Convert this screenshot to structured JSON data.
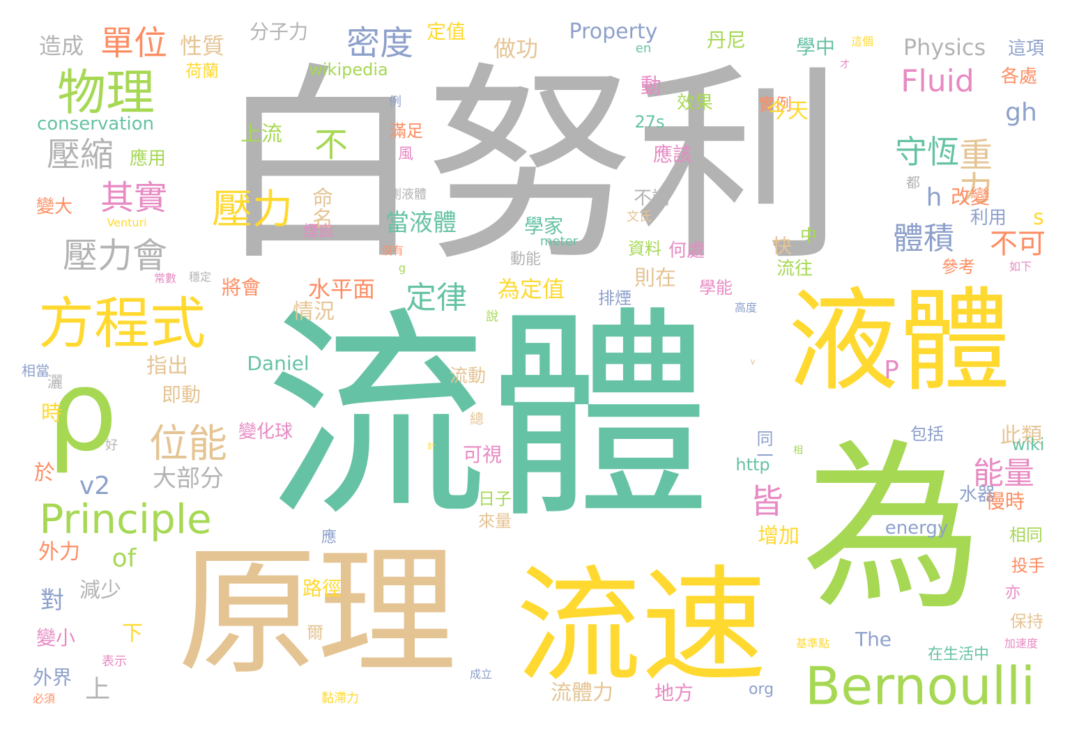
{
  "palette": {
    "gray": "#b3b3b3",
    "teal": "#66c2a5",
    "yellow": "#ffd92f",
    "green": "#a6d854",
    "tan": "#e5c494",
    "orange": "#fc8d62",
    "blue": "#8da0cb",
    "pink": "#e78ac3"
  },
  "words": [
    {
      "text": "白努利",
      "color": "gray"
    },
    {
      "text": "流體",
      "color": "teal"
    },
    {
      "text": "液體",
      "color": "yellow"
    },
    {
      "text": "為",
      "color": "green"
    },
    {
      "text": "原理",
      "color": "tan"
    },
    {
      "text": "流速",
      "color": "yellow"
    },
    {
      "text": "ρ",
      "color": "green"
    },
    {
      "text": "方程式",
      "color": "yellow"
    },
    {
      "text": "Bernoulli",
      "color": "green"
    },
    {
      "text": "Principle",
      "color": "green"
    },
    {
      "text": "物理",
      "color": "green"
    },
    {
      "text": "單位",
      "color": "orange"
    },
    {
      "text": "密度",
      "color": "blue"
    },
    {
      "text": "壓力",
      "color": "yellow"
    },
    {
      "text": "位能",
      "color": "tan"
    },
    {
      "text": "壓縮",
      "color": "gray"
    },
    {
      "text": "其實",
      "color": "pink"
    },
    {
      "text": "壓力會",
      "color": "gray"
    },
    {
      "text": "重力",
      "color": "tan"
    },
    {
      "text": "守恆",
      "color": "teal"
    },
    {
      "text": "Fluid",
      "color": "pink"
    },
    {
      "text": "gh",
      "color": "blue"
    },
    {
      "text": "體積",
      "color": "blue"
    },
    {
      "text": "不可",
      "color": "orange"
    },
    {
      "text": "定律",
      "color": "teal"
    },
    {
      "text": "能量",
      "color": "pink"
    },
    {
      "text": "皆",
      "color": "pink"
    },
    {
      "text": "不",
      "color": "green"
    },
    {
      "text": "v2",
      "color": "blue"
    },
    {
      "text": "of",
      "color": "green"
    },
    {
      "text": "上流",
      "color": "green"
    },
    {
      "text": "造成",
      "color": "gray"
    },
    {
      "text": "性質",
      "color": "tan"
    },
    {
      "text": "分子力",
      "color": "gray"
    },
    {
      "text": "定值",
      "color": "yellow"
    },
    {
      "text": "做功",
      "color": "tan"
    },
    {
      "text": "Property",
      "color": "blue"
    },
    {
      "text": "en",
      "color": "teal"
    },
    {
      "text": "丹尼",
      "color": "green"
    },
    {
      "text": "學中",
      "color": "teal"
    },
    {
      "text": "這個",
      "color": "yellow"
    },
    {
      "text": "Physics",
      "color": "gray"
    },
    {
      "text": "這項",
      "color": "blue"
    },
    {
      "text": "荷蘭",
      "color": "yellow"
    },
    {
      "text": "wikipedia",
      "color": "green"
    },
    {
      "text": "才",
      "color": "pink"
    },
    {
      "text": "各處",
      "color": "orange"
    },
    {
      "text": "conservation",
      "color": "teal"
    },
    {
      "text": "例",
      "color": "blue"
    },
    {
      "text": "動",
      "color": "pink"
    },
    {
      "text": "效果",
      "color": "green"
    },
    {
      "text": "實例",
      "color": "orange"
    },
    {
      "text": "今天",
      "color": "yellow"
    },
    {
      "text": "27s",
      "color": "teal"
    },
    {
      "text": "滿足",
      "color": "orange"
    },
    {
      "text": "應用",
      "color": "green"
    },
    {
      "text": "風",
      "color": "pink"
    },
    {
      "text": "應該",
      "color": "pink"
    },
    {
      "text": "h",
      "color": "blue"
    },
    {
      "text": "改變",
      "color": "orange"
    },
    {
      "text": "都",
      "color": "gray"
    },
    {
      "text": "變大",
      "color": "orange"
    },
    {
      "text": "測液體",
      "color": "gray"
    },
    {
      "text": "不論",
      "color": "gray"
    },
    {
      "text": "Venturi",
      "color": "yellow"
    },
    {
      "text": "命名",
      "color": "tan"
    },
    {
      "text": "煙囪",
      "color": "pink"
    },
    {
      "text": "當液體",
      "color": "teal"
    },
    {
      "text": "文氏",
      "color": "tan"
    },
    {
      "text": "學家",
      "color": "teal"
    },
    {
      "text": "s",
      "color": "yellow"
    },
    {
      "text": "利用",
      "color": "blue"
    },
    {
      "text": "中",
      "color": "green"
    },
    {
      "text": "meter",
      "color": "teal"
    },
    {
      "text": "資料",
      "color": "green"
    },
    {
      "text": "何處",
      "color": "pink"
    },
    {
      "text": "快",
      "color": "tan"
    },
    {
      "text": "沒有",
      "color": "orange"
    },
    {
      "text": "動能",
      "color": "gray"
    },
    {
      "text": "如下",
      "color": "pink"
    },
    {
      "text": "參考",
      "color": "orange"
    },
    {
      "text": "g",
      "color": "green"
    },
    {
      "text": "常數",
      "color": "pink"
    },
    {
      "text": "穩定",
      "color": "gray"
    },
    {
      "text": "將會",
      "color": "orange"
    },
    {
      "text": "水平面",
      "color": "orange"
    },
    {
      "text": "為定值",
      "color": "yellow"
    },
    {
      "text": "則在",
      "color": "tan"
    },
    {
      "text": "流往",
      "color": "green"
    },
    {
      "text": "學能",
      "color": "pink"
    },
    {
      "text": "情況",
      "color": "tan"
    },
    {
      "text": "排煙",
      "color": "blue"
    },
    {
      "text": "說",
      "color": "green"
    },
    {
      "text": "高度",
      "color": "blue"
    },
    {
      "text": "指出",
      "color": "tan"
    },
    {
      "text": "Daniel",
      "color": "teal"
    },
    {
      "text": "P",
      "color": "pink"
    },
    {
      "text": "相當",
      "color": "blue"
    },
    {
      "text": "灑",
      "color": "gray"
    },
    {
      "text": "即動",
      "color": "tan"
    },
    {
      "text": "流動",
      "color": "tan"
    },
    {
      "text": "v",
      "color": "tan"
    },
    {
      "text": "時",
      "color": "yellow"
    },
    {
      "text": "總",
      "color": "tan"
    },
    {
      "text": "變化球",
      "color": "pink"
    },
    {
      "text": "好",
      "color": "gray"
    },
    {
      "text": "計",
      "color": "yellow"
    },
    {
      "text": "同一",
      "color": "blue"
    },
    {
      "text": "此類",
      "color": "tan"
    },
    {
      "text": "相",
      "color": "green"
    },
    {
      "text": "包括",
      "color": "blue"
    },
    {
      "text": "wiki",
      "color": "teal"
    },
    {
      "text": "可視",
      "color": "pink"
    },
    {
      "text": "大部分",
      "color": "gray"
    },
    {
      "text": "http",
      "color": "teal"
    },
    {
      "text": "於",
      "color": "orange"
    },
    {
      "text": "日子",
      "color": "green"
    },
    {
      "text": "水器",
      "color": "blue"
    },
    {
      "text": "慢時",
      "color": "orange"
    },
    {
      "text": "來量",
      "color": "tan"
    },
    {
      "text": "應",
      "color": "blue"
    },
    {
      "text": "energy",
      "color": "blue"
    },
    {
      "text": "增加",
      "color": "yellow"
    },
    {
      "text": "相同",
      "color": "green"
    },
    {
      "text": "外力",
      "color": "orange"
    },
    {
      "text": "減少",
      "color": "gray"
    },
    {
      "text": "投手",
      "color": "orange"
    },
    {
      "text": "對",
      "color": "blue"
    },
    {
      "text": "路徑",
      "color": "yellow"
    },
    {
      "text": "亦",
      "color": "pink"
    },
    {
      "text": "下",
      "color": "yellow"
    },
    {
      "text": "保持",
      "color": "tan"
    },
    {
      "text": "爾",
      "color": "tan"
    },
    {
      "text": "The",
      "color": "blue"
    },
    {
      "text": "變小",
      "color": "pink"
    },
    {
      "text": "基準點",
      "color": "yellow"
    },
    {
      "text": "加速度",
      "color": "pink"
    },
    {
      "text": "表示",
      "color": "pink"
    },
    {
      "text": "在生活中",
      "color": "teal"
    },
    {
      "text": "外界",
      "color": "blue"
    },
    {
      "text": "成立",
      "color": "blue"
    },
    {
      "text": "上",
      "color": "gray"
    },
    {
      "text": "流體力",
      "color": "tan"
    },
    {
      "text": "地方",
      "color": "pink"
    },
    {
      "text": "org",
      "color": "blue"
    },
    {
      "text": "必須",
      "color": "orange"
    },
    {
      "text": "黏滯力",
      "color": "yellow"
    }
  ]
}
